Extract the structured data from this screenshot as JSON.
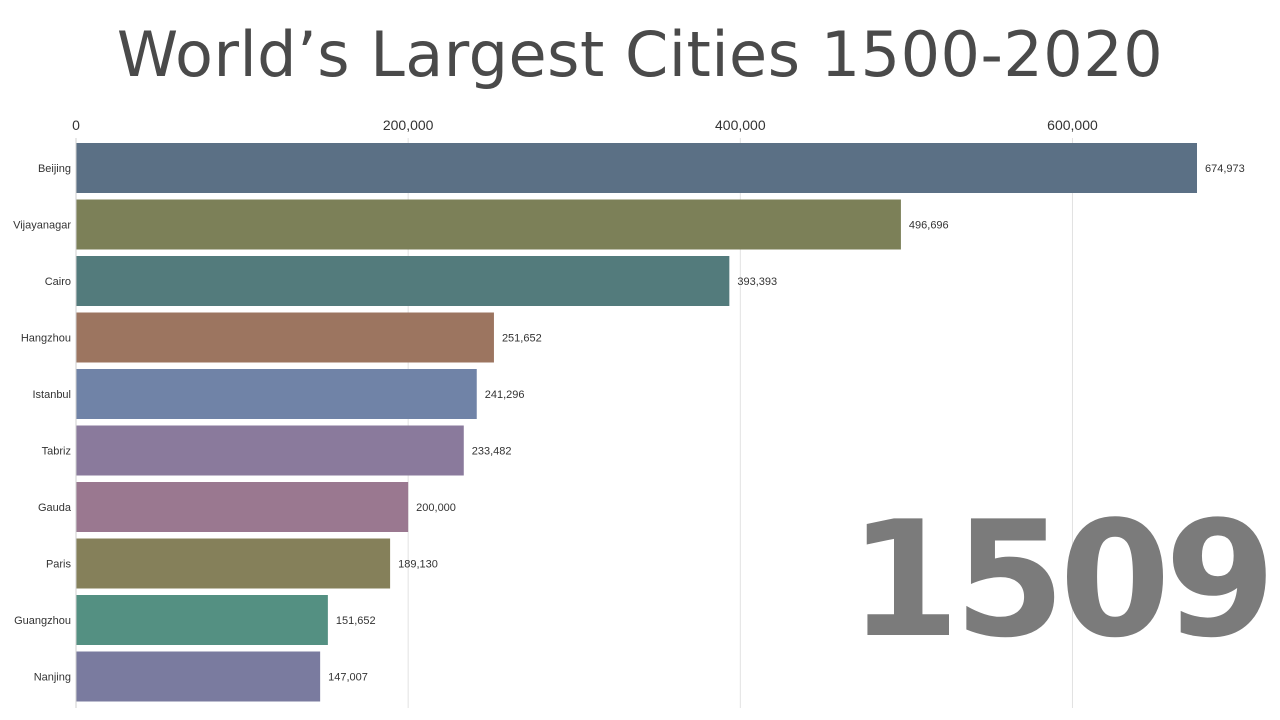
{
  "chart_data": {
    "type": "bar",
    "orientation": "horizontal",
    "title": "World’s Largest Cities 1500-2020",
    "year_label": "1509",
    "xlim": [
      0,
      674973
    ],
    "x_ticks": [
      0,
      200000,
      400000,
      600000
    ],
    "x_tick_labels": [
      "0",
      "200,000",
      "400,000",
      "600,000"
    ],
    "grid": true,
    "categories": [
      "Beijing",
      "Vijayanagar",
      "Cairo",
      "Hangzhou",
      "Istanbul",
      "Tabriz",
      "Gauda",
      "Paris",
      "Guangzhou",
      "Nanjing"
    ],
    "values": [
      674973,
      496696,
      393393,
      251652,
      241296,
      233482,
      200000,
      189130,
      151652,
      147007
    ],
    "value_labels": [
      "674,973",
      "496,696",
      "393,393",
      "251,652",
      "241,296",
      "233,482",
      "200,000",
      "189,130",
      "151,652",
      "147,007"
    ],
    "colors": [
      "#5b7085",
      "#7c8058",
      "#537b7c",
      "#9c7560",
      "#7083a7",
      "#8a7a9c",
      "#9a7890",
      "#85805a",
      "#549082",
      "#7a7b9f"
    ]
  }
}
